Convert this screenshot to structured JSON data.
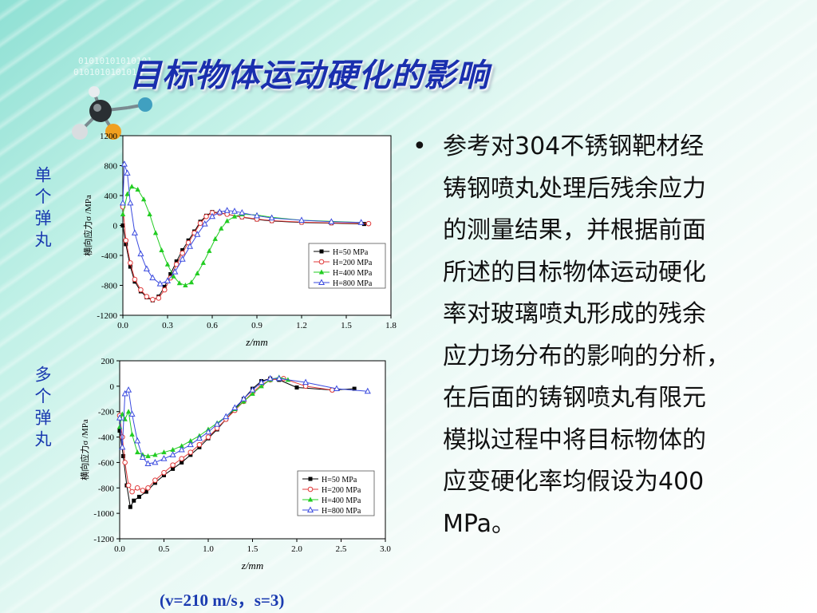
{
  "title": "目标物体运动硬化的影响",
  "side_labels": {
    "top": "单个弹丸",
    "bottom": "多个弹丸"
  },
  "bullet": {
    "lines": [
      "参考对304不锈钢靶材经",
      "铸钢喷丸处理后残余应力",
      "的测量结果，并根据前面",
      "所述的目标物体运动硬化",
      "率对玻璃喷丸形成的残余",
      "应力场分布的影响的分析，",
      "在后面的铸钢喷丸有限元",
      "模拟过程中将目标物体的",
      "应变硬化率均假设为400",
      "MPa。"
    ]
  },
  "caption": "(v=210 m/s，s=3)",
  "colors": {
    "H50": "#000000",
    "H200": "#e03a3a",
    "H400": "#22cc22",
    "H800": "#3a4adf",
    "text_blue": "#1a3ab0"
  },
  "chart_data": [
    {
      "type": "line",
      "xlabel": "z/mm",
      "ylabel": "横向应力σ /MPa",
      "xlim": [
        0.0,
        1.8
      ],
      "ylim": [
        -1200,
        1200
      ],
      "xticks": [
        "0.0",
        "0.3",
        "0.6",
        "0.9",
        "1.2",
        "1.5",
        "1.8"
      ],
      "yticks": [
        "1200",
        "800",
        "400",
        "0",
        "-400",
        "-800",
        "-1200"
      ],
      "legend_position": "bottom-right",
      "series": [
        {
          "name": "H=50 MPa",
          "marker": "square",
          "x": [
            0.0,
            0.02,
            0.05,
            0.08,
            0.12,
            0.16,
            0.2,
            0.24,
            0.28,
            0.32,
            0.36,
            0.4,
            0.44,
            0.48,
            0.52,
            0.56,
            0.6,
            0.65,
            0.7,
            0.8,
            0.9,
            1.0,
            1.2,
            1.4,
            1.62
          ],
          "y": [
            0,
            -250,
            -550,
            -750,
            -880,
            -960,
            -1000,
            -950,
            -820,
            -650,
            -480,
            -330,
            -200,
            -80,
            50,
            130,
            180,
            170,
            150,
            110,
            80,
            60,
            40,
            30,
            20
          ]
        },
        {
          "name": "H=200 MPa",
          "marker": "circle",
          "x": [
            0.0,
            0.02,
            0.05,
            0.08,
            0.12,
            0.16,
            0.2,
            0.24,
            0.28,
            0.32,
            0.36,
            0.4,
            0.44,
            0.48,
            0.52,
            0.56,
            0.6,
            0.65,
            0.7,
            0.8,
            0.9,
            1.0,
            1.2,
            1.4,
            1.65
          ],
          "y": [
            250,
            -200,
            -500,
            -720,
            -860,
            -950,
            -990,
            -970,
            -860,
            -700,
            -520,
            -370,
            -230,
            -100,
            30,
            120,
            170,
            165,
            150,
            115,
            85,
            65,
            45,
            35,
            25
          ]
        },
        {
          "name": "H=400 MPa",
          "marker": "triangle",
          "x": [
            0.0,
            0.03,
            0.06,
            0.1,
            0.14,
            0.18,
            0.22,
            0.26,
            0.3,
            0.34,
            0.38,
            0.42,
            0.46,
            0.5,
            0.54,
            0.58,
            0.62,
            0.66,
            0.7,
            0.75,
            0.8,
            0.9,
            1.0,
            1.2,
            1.6
          ],
          "y": [
            150,
            420,
            520,
            480,
            350,
            150,
            -100,
            -330,
            -520,
            -680,
            -770,
            -800,
            -760,
            -640,
            -500,
            -340,
            -180,
            -40,
            60,
            120,
            150,
            140,
            110,
            70,
            40
          ]
        },
        {
          "name": "H=800 MPa",
          "marker": "triangle-open",
          "x": [
            0.0,
            0.01,
            0.03,
            0.05,
            0.08,
            0.12,
            0.16,
            0.2,
            0.25,
            0.3,
            0.35,
            0.4,
            0.45,
            0.5,
            0.55,
            0.6,
            0.65,
            0.7,
            0.75,
            0.8,
            0.9,
            1.0,
            1.2,
            1.4,
            1.6
          ],
          "y": [
            300,
            820,
            700,
            300,
            -100,
            -380,
            -580,
            -700,
            -780,
            -740,
            -620,
            -450,
            -280,
            -120,
            20,
            120,
            180,
            200,
            190,
            170,
            130,
            100,
            70,
            50,
            40
          ]
        }
      ]
    },
    {
      "type": "line",
      "xlabel": "z/mm",
      "ylabel": "横向应力σ /MPa",
      "xlim": [
        0.0,
        3.0
      ],
      "ylim": [
        -1200,
        200
      ],
      "xticks": [
        "0.0",
        "0.5",
        "1.0",
        "1.5",
        "2.0",
        "2.5",
        "3.0"
      ],
      "yticks": [
        "200",
        "0",
        "-200",
        "-400",
        "-600",
        "-800",
        "-1000",
        "-1200"
      ],
      "legend_position": "bottom-right",
      "series": [
        {
          "name": "H=50 MPa",
          "marker": "square",
          "x": [
            0.0,
            0.04,
            0.08,
            0.12,
            0.16,
            0.22,
            0.3,
            0.4,
            0.5,
            0.6,
            0.7,
            0.8,
            0.9,
            1.0,
            1.1,
            1.2,
            1.3,
            1.4,
            1.5,
            1.6,
            1.7,
            1.8,
            2.0,
            2.4,
            2.65
          ],
          "y": [
            -350,
            -550,
            -780,
            -950,
            -900,
            -870,
            -830,
            -760,
            -700,
            -650,
            -600,
            -540,
            -480,
            -410,
            -340,
            -260,
            -180,
            -100,
            -20,
            40,
            60,
            50,
            -10,
            -30,
            -20
          ]
        },
        {
          "name": "H=200 MPa",
          "marker": "circle",
          "x": [
            0.0,
            0.03,
            0.06,
            0.1,
            0.14,
            0.2,
            0.26,
            0.32,
            0.4,
            0.5,
            0.6,
            0.7,
            0.8,
            0.9,
            1.0,
            1.1,
            1.2,
            1.3,
            1.4,
            1.5,
            1.6,
            1.7,
            1.85,
            2.1,
            2.4
          ],
          "y": [
            -230,
            -400,
            -600,
            -780,
            -830,
            -800,
            -820,
            -800,
            -740,
            -680,
            -620,
            -570,
            -520,
            -460,
            -400,
            -330,
            -260,
            -190,
            -120,
            -50,
            10,
            50,
            60,
            0,
            -30
          ]
        },
        {
          "name": "H=400 MPa",
          "marker": "triangle",
          "x": [
            0.0,
            0.03,
            0.06,
            0.1,
            0.14,
            0.2,
            0.26,
            0.32,
            0.4,
            0.5,
            0.6,
            0.7,
            0.8,
            0.9,
            1.0,
            1.1,
            1.2,
            1.3,
            1.4,
            1.5,
            1.6,
            1.7,
            1.8,
            1.9
          ],
          "y": [
            -320,
            -220,
            -260,
            -200,
            -380,
            -520,
            -540,
            -550,
            -540,
            -520,
            -500,
            -470,
            -430,
            -390,
            -340,
            -290,
            -240,
            -180,
            -120,
            -60,
            0,
            50,
            70,
            50
          ]
        },
        {
          "name": "H=800 MPa",
          "marker": "triangle-open",
          "x": [
            0.0,
            0.03,
            0.06,
            0.1,
            0.14,
            0.2,
            0.26,
            0.32,
            0.4,
            0.5,
            0.6,
            0.7,
            0.8,
            0.9,
            1.0,
            1.1,
            1.2,
            1.3,
            1.4,
            1.5,
            1.6,
            1.7,
            1.8,
            2.1,
            2.45,
            2.8
          ],
          "y": [
            -250,
            -480,
            -60,
            -30,
            -220,
            -430,
            -560,
            -610,
            -600,
            -570,
            -540,
            -500,
            -460,
            -410,
            -360,
            -300,
            -240,
            -170,
            -100,
            -30,
            30,
            60,
            60,
            30,
            -20,
            -40
          ]
        }
      ]
    }
  ]
}
